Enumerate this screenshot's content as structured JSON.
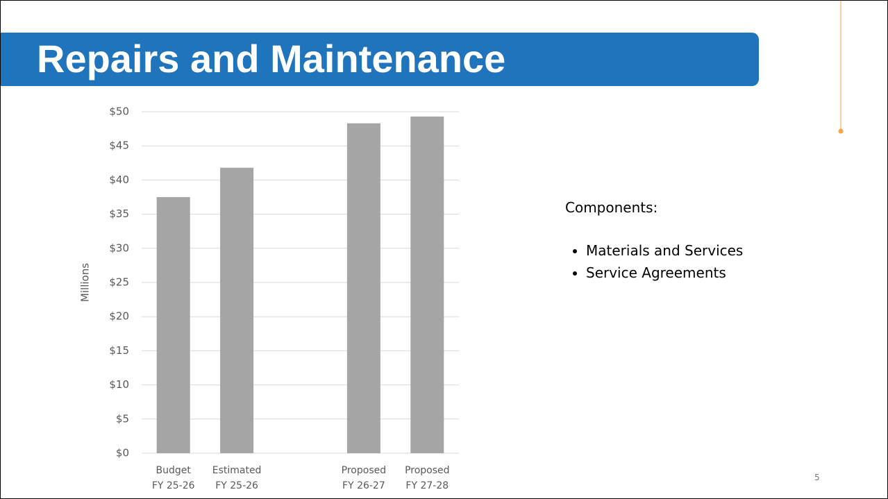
{
  "header": {
    "title": "Repairs and Maintenance"
  },
  "chart_data": {
    "type": "bar",
    "categories": [
      "Budget\nFY 25-26",
      "Estimated\nFY 25-26",
      null,
      "Proposed\nFY 26-27",
      "Proposed\nFY 27-28"
    ],
    "values": [
      37.5,
      41.8,
      null,
      48.3,
      49.3
    ],
    "color": "#a5a5a5",
    "y_label": "Millions",
    "ylim": [
      0,
      50
    ],
    "yticks": [
      {
        "value": 0,
        "label": "$0"
      },
      {
        "value": 5,
        "label": "$5"
      },
      {
        "value": 10,
        "label": "$10"
      },
      {
        "value": 15,
        "label": "$15"
      },
      {
        "value": 20,
        "label": "$20"
      },
      {
        "value": 25,
        "label": "$25"
      },
      {
        "value": 30,
        "label": "$30"
      },
      {
        "value": 35,
        "label": "$35"
      },
      {
        "value": 40,
        "label": "$40"
      },
      {
        "value": 45,
        "label": "$45"
      },
      {
        "value": 50,
        "label": "$50"
      }
    ],
    "grid": true
  },
  "components": {
    "heading": "Components:",
    "items": [
      "Materials and Services",
      "Service Agreements"
    ]
  },
  "page_number": "5"
}
